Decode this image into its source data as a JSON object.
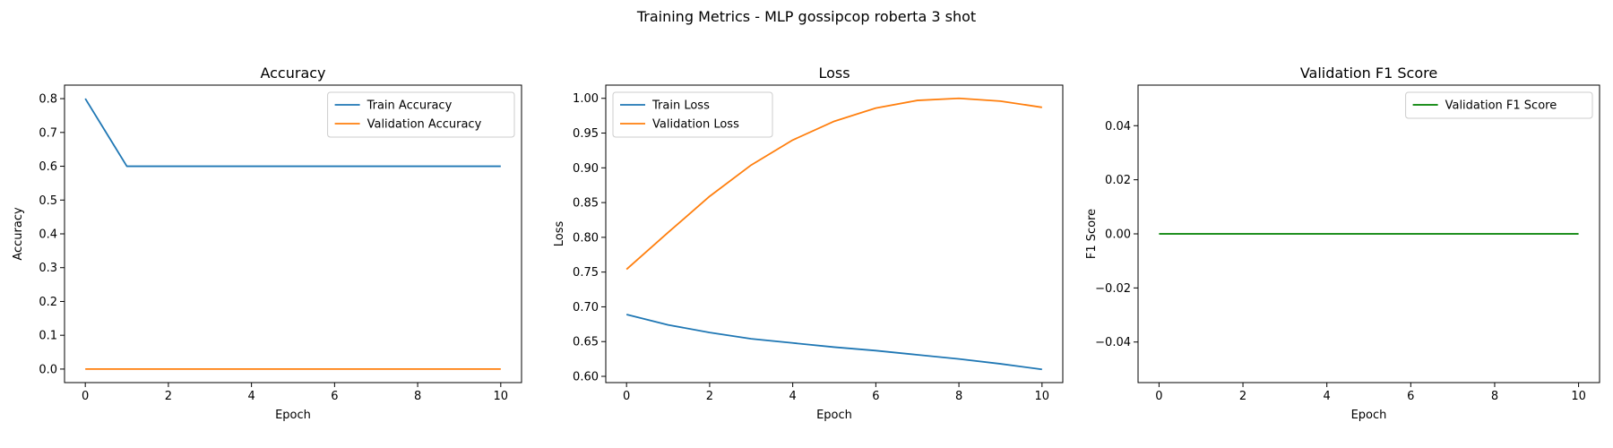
{
  "figure": {
    "title": "Training Metrics - MLP gossipcop roberta 3 shot"
  },
  "chart_data": [
    {
      "type": "line",
      "title": "Accuracy",
      "xlabel": "Epoch",
      "ylabel": "Accuracy",
      "xlim": [
        -0.5,
        10.5
      ],
      "ylim": [
        -0.04,
        0.84
      ],
      "xticks": [
        0,
        2,
        4,
        6,
        8,
        10
      ],
      "yticks": [
        0.0,
        0.1,
        0.2,
        0.3,
        0.4,
        0.5,
        0.6,
        0.7,
        0.8
      ],
      "ytick_decimals": 1,
      "legend": "upper-right",
      "grid": false,
      "x": [
        0,
        1,
        2,
        3,
        4,
        5,
        6,
        7,
        8,
        9,
        10
      ],
      "series": [
        {
          "name": "Train Accuracy",
          "color": "#1f77b4",
          "values": [
            0.8,
            0.6,
            0.6,
            0.6,
            0.6,
            0.6,
            0.6,
            0.6,
            0.6,
            0.6,
            0.6
          ]
        },
        {
          "name": "Validation Accuracy",
          "color": "#ff7f0e",
          "values": [
            0,
            0,
            0,
            0,
            0,
            0,
            0,
            0,
            0,
            0,
            0
          ]
        }
      ]
    },
    {
      "type": "line",
      "title": "Loss",
      "xlabel": "Epoch",
      "ylabel": "Loss",
      "xlim": [
        -0.5,
        10.5
      ],
      "ylim": [
        0.591,
        1.019
      ],
      "xticks": [
        0,
        2,
        4,
        6,
        8,
        10
      ],
      "yticks": [
        0.6,
        0.65,
        0.7,
        0.75,
        0.8,
        0.85,
        0.9,
        0.95,
        1.0
      ],
      "ytick_decimals": 2,
      "legend": "upper-left",
      "grid": false,
      "x": [
        0,
        1,
        2,
        3,
        4,
        5,
        6,
        7,
        8,
        9,
        10
      ],
      "series": [
        {
          "name": "Train Loss",
          "color": "#1f77b4",
          "values": [
            0.689,
            0.674,
            0.663,
            0.654,
            0.648,
            0.642,
            0.637,
            0.631,
            0.625,
            0.618,
            0.61
          ]
        },
        {
          "name": "Validation Loss",
          "color": "#ff7f0e",
          "values": [
            0.754,
            0.807,
            0.859,
            0.904,
            0.94,
            0.967,
            0.986,
            0.997,
            1.0,
            0.996,
            0.987
          ]
        }
      ]
    },
    {
      "type": "line",
      "title": "Validation F1 Score",
      "xlabel": "Epoch",
      "ylabel": "F1 Score",
      "xlim": [
        -0.5,
        10.5
      ],
      "ylim": [
        -0.055,
        0.055
      ],
      "xticks": [
        0,
        2,
        4,
        6,
        8,
        10
      ],
      "yticks": [
        -0.04,
        -0.02,
        0.0,
        0.02,
        0.04
      ],
      "ytick_decimals": 2,
      "legend": "upper-right",
      "grid": false,
      "x": [
        0,
        1,
        2,
        3,
        4,
        5,
        6,
        7,
        8,
        9,
        10
      ],
      "series": [
        {
          "name": "Validation F1 Score",
          "color": "#008000",
          "values": [
            0,
            0,
            0,
            0,
            0,
            0,
            0,
            0,
            0,
            0,
            0
          ]
        }
      ]
    }
  ]
}
